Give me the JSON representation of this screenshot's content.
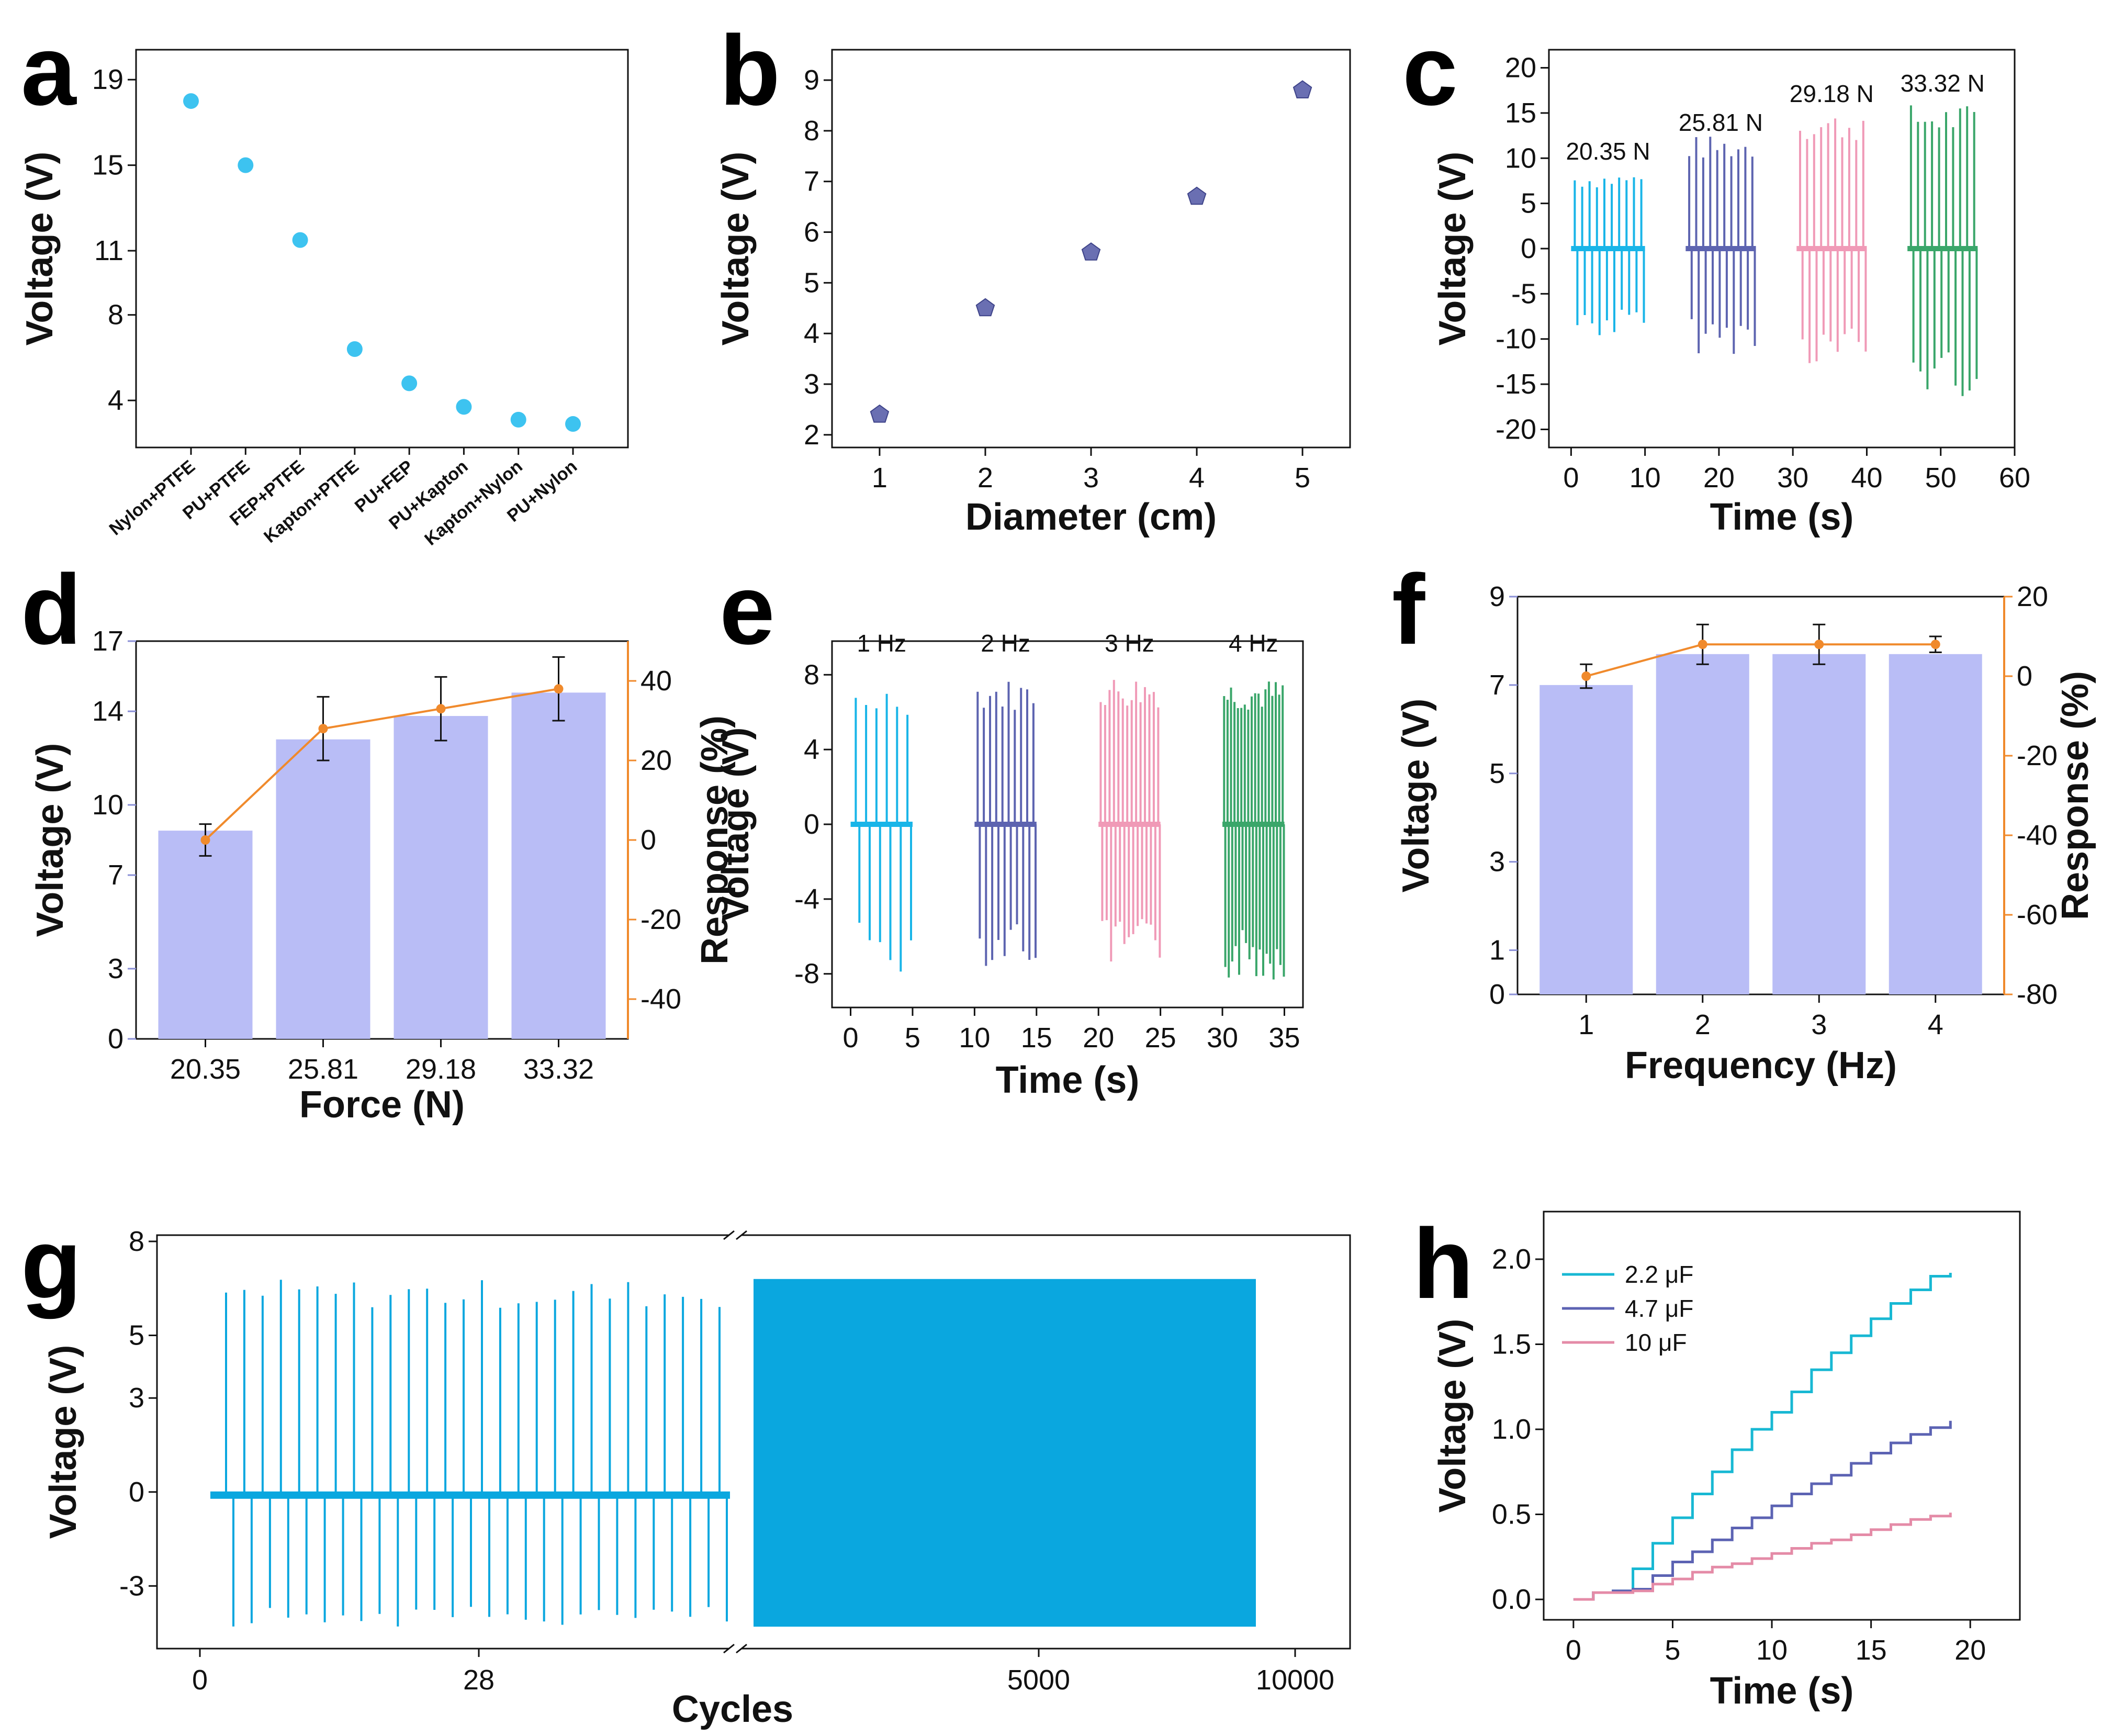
{
  "figure": {
    "panels": [
      "a",
      "b",
      "c",
      "d",
      "e",
      "f",
      "g",
      "h"
    ]
  },
  "chart_data": [
    {
      "panel": "a",
      "type": "scatter",
      "ylabel": "Voltage (V)",
      "categories": [
        "Nylon+PTFE",
        "PU+PTFE",
        "FEP+PTFE",
        "Kapton+PTFE",
        "PU+FEP",
        "PU+Kapton",
        "Kapton+Nylon",
        "PU+Nylon"
      ],
      "values": [
        18.0,
        15.0,
        11.5,
        6.4,
        4.8,
        3.7,
        3.1,
        2.9
      ],
      "ylim": [
        1.8,
        20.4
      ],
      "yticks": [
        4,
        8,
        11,
        15,
        19
      ],
      "color": "#3dc3f0"
    },
    {
      "panel": "b",
      "type": "scatter",
      "xlabel": "Diameter (cm)",
      "ylabel": "Voltage (V)",
      "x": [
        1,
        2,
        3,
        4,
        5
      ],
      "values": [
        2.4,
        4.5,
        5.6,
        6.7,
        8.8
      ],
      "xlim": [
        0.55,
        5.45
      ],
      "ylim": [
        1.75,
        9.6
      ],
      "xticks": [
        1,
        2,
        3,
        4,
        5
      ],
      "yticks": [
        2,
        3,
        4,
        5,
        6,
        7,
        8,
        9
      ],
      "color": "#6a6fb2"
    },
    {
      "panel": "c",
      "type": "line",
      "xlabel": "Time (s)",
      "ylabel": "Voltage (V)",
      "xlim": [
        -3,
        60
      ],
      "ylim": [
        -22,
        22
      ],
      "xticks": [
        0,
        10,
        20,
        30,
        40,
        50,
        60
      ],
      "yticks": [
        -20,
        -15,
        -10,
        -5,
        0,
        5,
        10,
        15,
        20
      ],
      "series": [
        {
          "name": "20.35 N",
          "start": 0,
          "end": 10,
          "amp_pos": 8.5,
          "amp_neg": -10,
          "color": "#19b5e8"
        },
        {
          "name": "25.81 N",
          "start": 15.5,
          "end": 25,
          "amp_pos": 12.5,
          "amp_neg": -11.7,
          "color": "#5d64b0"
        },
        {
          "name": "29.18 N",
          "start": 30.5,
          "end": 40,
          "amp_pos": 15.2,
          "amp_neg": -13,
          "color": "#f09ab7"
        },
        {
          "name": "33.32 N",
          "start": 45.5,
          "end": 55,
          "amp_pos": 16,
          "amp_neg": -16.5,
          "color": "#3aa66a"
        }
      ]
    },
    {
      "panel": "d",
      "type": "bar",
      "xlabel": "Force (N)",
      "ylabel": "Voltage (V)",
      "y2label": "Response (%)",
      "categories": [
        "20.35",
        "25.81",
        "29.18",
        "33.32"
      ],
      "values": [
        8.9,
        12.8,
        13.8,
        14.8
      ],
      "ylim": [
        0,
        17
      ],
      "yticks": [
        0,
        3,
        7,
        10,
        14,
        17
      ],
      "y2lim": [
        -50,
        50
      ],
      "y2ticks": [
        -40,
        -20,
        0,
        20,
        40
      ],
      "response": [
        0,
        28,
        33,
        38
      ],
      "response_err": [
        4,
        8,
        8,
        8
      ],
      "bar_color": "#b9bdf6",
      "line_color": "#f08a2c",
      "ylabel_color": "#c5c8f5",
      "y2label_color": "#9b1fc9"
    },
    {
      "panel": "e",
      "type": "line",
      "xlabel": "Time (s)",
      "ylabel": "Voltage (V)",
      "xlim": [
        -1.5,
        36.5
      ],
      "ylim": [
        -9.8,
        9.8
      ],
      "xticks": [
        0,
        5,
        10,
        15,
        20,
        25,
        30,
        35
      ],
      "yticks": [
        -8,
        -4,
        0,
        4,
        8
      ],
      "series": [
        {
          "name": "1 Hz",
          "start": 0,
          "end": 5,
          "amp_pos": 7.5,
          "amp_neg": -8,
          "color": "#19b5e8"
        },
        {
          "name": "2 Hz",
          "start": 10,
          "end": 15,
          "amp_pos": 7.8,
          "amp_neg": -7.6,
          "color": "#5d64b0"
        },
        {
          "name": "3 Hz",
          "start": 20,
          "end": 25,
          "amp_pos": 8,
          "amp_neg": -7.8,
          "color": "#f09ab7"
        },
        {
          "name": "4 Hz",
          "start": 30,
          "end": 35,
          "amp_pos": 7.8,
          "amp_neg": -8.4,
          "color": "#3aa66a"
        }
      ]
    },
    {
      "panel": "f",
      "type": "bar",
      "xlabel": "Frequency (Hz)",
      "ylabel": "Voltage (V)",
      "y2label": "Response (%)",
      "categories": [
        "1",
        "2",
        "3",
        "4"
      ],
      "values": [
        7.0,
        7.7,
        7.7,
        7.7
      ],
      "ylim": [
        0,
        9
      ],
      "yticks": [
        0,
        1,
        3,
        5,
        7,
        9
      ],
      "y2lim": [
        -80,
        20
      ],
      "y2ticks": [
        -80,
        -60,
        -40,
        -20,
        0,
        20
      ],
      "response": [
        0,
        8,
        8,
        8
      ],
      "response_err": [
        3,
        5,
        5,
        2
      ],
      "bar_color": "#b9bdf6",
      "line_color": "#f08a2c",
      "ylabel_color": "#9b1fc9",
      "y2label_color": "#9b1fc9"
    },
    {
      "panel": "g",
      "type": "line",
      "xlabel": "Cycles",
      "ylabel": "Voltage (V)",
      "ylim": [
        -5,
        8.2
      ],
      "yticks": [
        -3,
        0,
        3,
        5,
        8
      ],
      "xticks": [
        "0",
        "28",
        "5000",
        "10000"
      ],
      "left_segment": {
        "cycles": 28,
        "amp_pos": 6.8,
        "amp_neg": -4.3
      },
      "right_segment": {
        "amp_pos": 6.8,
        "amp_neg": -4.3
      },
      "color": "#0aa7df"
    },
    {
      "panel": "h",
      "type": "line",
      "xlabel": "Time (s)",
      "ylabel": "Voltage (V)",
      "xlim": [
        -1.5,
        22.5
      ],
      "ylim": [
        -0.12,
        2.28
      ],
      "xticks": [
        0,
        5,
        10,
        15,
        20
      ],
      "yticks": [
        "0.0",
        "0.5",
        "1.0",
        "1.5",
        "2.0"
      ],
      "series": [
        {
          "name": "2.2 μF",
          "x": [
            0,
            1,
            2,
            3,
            4,
            5,
            6,
            7,
            8,
            9,
            10,
            11,
            12,
            13,
            14,
            15,
            16,
            17,
            18,
            19
          ],
          "y": [
            0.0,
            0.04,
            0.05,
            0.18,
            0.33,
            0.48,
            0.62,
            0.75,
            0.88,
            1.0,
            1.1,
            1.22,
            1.35,
            1.45,
            1.55,
            1.65,
            1.74,
            1.82,
            1.9,
            1.92
          ],
          "color": "#18b8d3"
        },
        {
          "name": "4.7 μF",
          "x": [
            0,
            1,
            2,
            3,
            4,
            5,
            6,
            7,
            8,
            9,
            10,
            11,
            12,
            13,
            14,
            15,
            16,
            17,
            18,
            19
          ],
          "y": [
            0.0,
            0.04,
            0.05,
            0.06,
            0.14,
            0.22,
            0.28,
            0.35,
            0.42,
            0.48,
            0.55,
            0.62,
            0.68,
            0.73,
            0.8,
            0.86,
            0.92,
            0.97,
            1.01,
            1.05
          ],
          "color": "#5c63b3"
        },
        {
          "name": "10 μF",
          "x": [
            0,
            1,
            2,
            3,
            4,
            5,
            6,
            7,
            8,
            9,
            10,
            11,
            12,
            13,
            14,
            15,
            16,
            17,
            18,
            19
          ],
          "y": [
            0.0,
            0.04,
            0.04,
            0.05,
            0.09,
            0.12,
            0.16,
            0.19,
            0.21,
            0.24,
            0.27,
            0.3,
            0.33,
            0.35,
            0.38,
            0.41,
            0.44,
            0.47,
            0.49,
            0.51
          ],
          "color": "#e48ba7"
        }
      ]
    }
  ]
}
